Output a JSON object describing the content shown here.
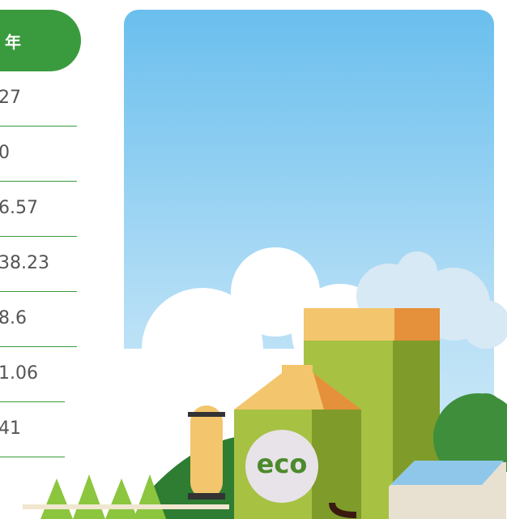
{
  "table": {
    "header": "年",
    "rows": [
      "27",
      "0",
      "6.57",
      "38.23",
      "8.6",
      "1.06",
      "41"
    ]
  },
  "illustration": {
    "badge": "eco"
  }
}
